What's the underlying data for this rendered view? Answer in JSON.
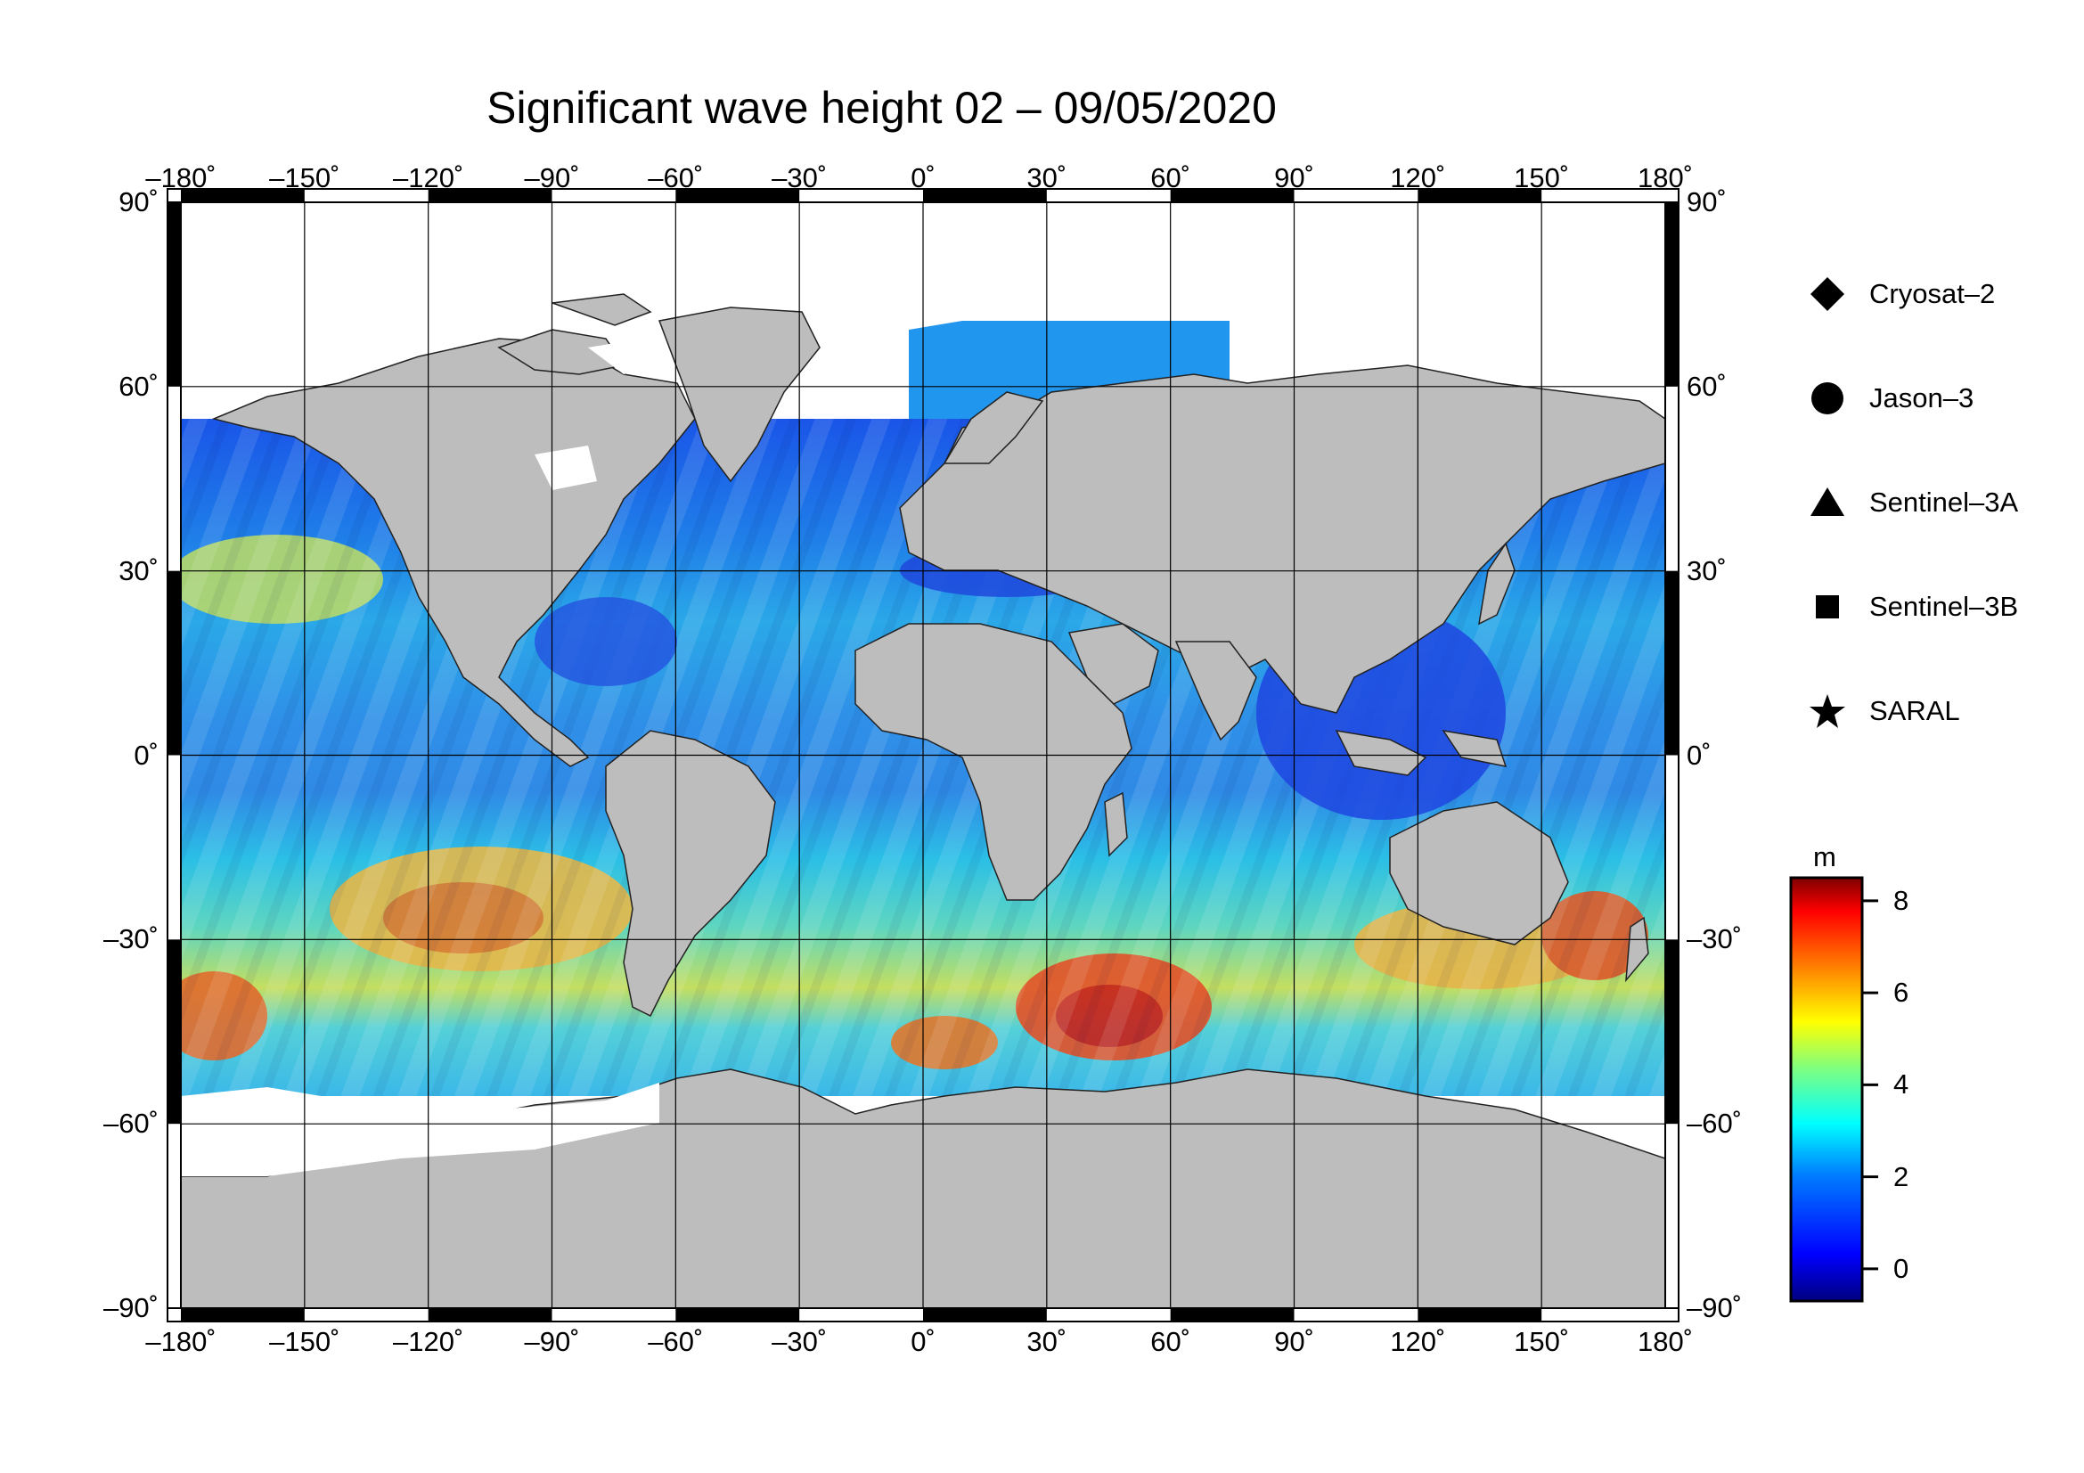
{
  "title": "Significant wave height 02 – 09/05/2020",
  "axes": {
    "lon_ticks": [
      "–180˚",
      "–150˚",
      "–120˚",
      "–90˚",
      "–60˚",
      "–30˚",
      "0˚",
      "30˚",
      "60˚",
      "90˚",
      "120˚",
      "150˚",
      "180˚"
    ],
    "lat_ticks_left": [
      "90˚",
      "60˚",
      "30˚",
      "0˚",
      "–30˚",
      "–60˚",
      "–90˚"
    ],
    "lat_ticks_right": [
      "90˚",
      "60˚",
      "30˚",
      "0˚",
      "–30˚",
      "–60˚",
      "–90˚"
    ],
    "lon_range": [
      -180,
      180
    ],
    "lat_range": [
      -90,
      90
    ],
    "grid": true
  },
  "legend": {
    "items": [
      {
        "label": "Cryosat–2",
        "marker": "diamond"
      },
      {
        "label": "Jason–3",
        "marker": "circle"
      },
      {
        "label": "Sentinel–3A",
        "marker": "triangle"
      },
      {
        "label": "Sentinel–3B",
        "marker": "square"
      },
      {
        "label": "SARAL",
        "marker": "star"
      }
    ]
  },
  "colorbar": {
    "unit": "m",
    "range": [
      -0.7,
      8.5
    ],
    "ticks": [
      "8",
      "6",
      "4",
      "2",
      "0"
    ],
    "colormap": [
      "#00007f",
      "#0000ff",
      "#007fff",
      "#00ffff",
      "#7fff7f",
      "#ffff00",
      "#ff7f00",
      "#ff0000",
      "#7f0000"
    ]
  },
  "colors": {
    "land": "#bdbdbd",
    "ice": "#ffffff",
    "ocean_calm": "#1f4fe0",
    "ocean_moderate": "#27b6e8",
    "ocean_high": "#e8d43a",
    "ocean_extreme": "#d8281c"
  }
}
